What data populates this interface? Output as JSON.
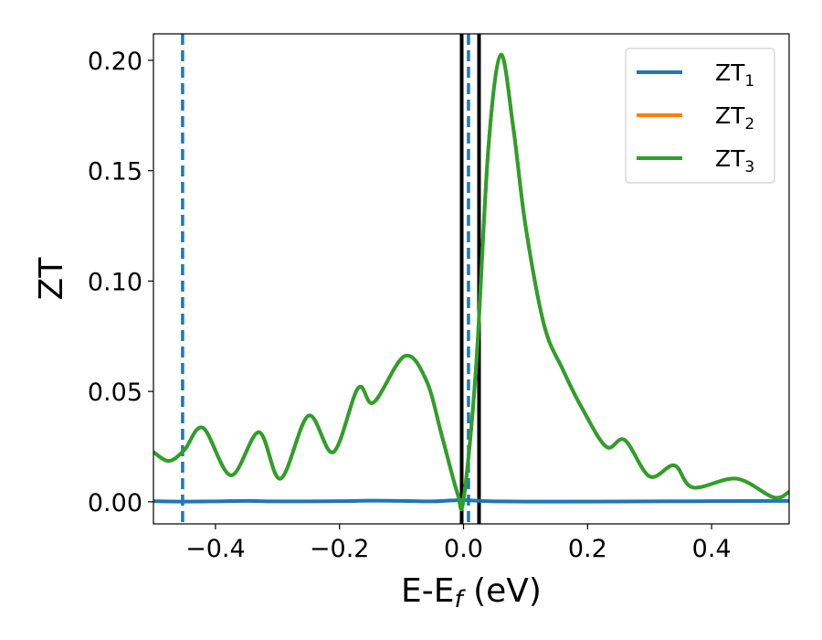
{
  "chart_data": {
    "type": "line",
    "xlabel": {
      "main": "E-E",
      "sub": "f",
      "unit": " (eV)"
    },
    "ylabel": "ZT",
    "xlim": [
      -0.5,
      0.525
    ],
    "ylim": [
      -0.01,
      0.212
    ],
    "grid": false,
    "legend_position": "upper right",
    "x_ticks": [
      {
        "value": -0.4,
        "label": "−0.4"
      },
      {
        "value": -0.2,
        "label": "−0.2"
      },
      {
        "value": 0.0,
        "label": "0.0"
      },
      {
        "value": 0.2,
        "label": "0.2"
      },
      {
        "value": 0.4,
        "label": "0.4"
      }
    ],
    "y_ticks": [
      {
        "value": 0.0,
        "label": "0.00"
      },
      {
        "value": 0.05,
        "label": "0.05"
      },
      {
        "value": 0.1,
        "label": "0.10"
      },
      {
        "value": 0.15,
        "label": "0.15"
      },
      {
        "value": 0.2,
        "label": "0.20"
      }
    ],
    "series": [
      {
        "name": "ZT",
        "sub": "1",
        "color": "#1f77b4",
        "x": [
          -0.5,
          -0.45,
          -0.4,
          -0.35,
          -0.3,
          -0.2,
          -0.15,
          -0.1,
          -0.05,
          -0.02,
          0.0,
          0.02,
          0.05,
          0.1,
          0.2,
          0.3,
          0.4,
          0.525
        ],
        "y": [
          0.0003,
          0.0001,
          0.0002,
          0.0004,
          0.0002,
          0.0003,
          0.0005,
          0.0004,
          0.0002,
          0.0006,
          0.0008,
          0.0005,
          0.0002,
          0.0001,
          0.0001,
          0.0002,
          0.0003,
          0.0004
        ]
      },
      {
        "name": "ZT",
        "sub": "2",
        "color": "#ff7f0e",
        "x": [
          -0.5,
          -0.475,
          -0.45,
          -0.42,
          -0.375,
          -0.33,
          -0.295,
          -0.25,
          -0.21,
          -0.17,
          -0.145,
          -0.095,
          -0.06,
          -0.035,
          -0.01,
          0.0,
          0.02,
          0.04,
          0.06,
          0.08,
          0.1,
          0.13,
          0.16,
          0.19,
          0.23,
          0.26,
          0.3,
          0.34,
          0.37,
          0.44,
          0.5,
          0.525
        ],
        "y": [
          0.0225,
          0.0185,
          0.0235,
          0.0335,
          0.012,
          0.0315,
          0.0105,
          0.039,
          0.0225,
          0.0515,
          0.045,
          0.066,
          0.055,
          0.03,
          0.004,
          0.001,
          0.06,
          0.16,
          0.2025,
          0.17,
          0.125,
          0.08,
          0.06,
          0.043,
          0.025,
          0.028,
          0.0115,
          0.0165,
          0.0065,
          0.0105,
          0.002,
          0.0045
        ]
      },
      {
        "name": "ZT",
        "sub": "3",
        "color": "#2ca02c",
        "x": [
          -0.5,
          -0.475,
          -0.45,
          -0.42,
          -0.375,
          -0.33,
          -0.295,
          -0.25,
          -0.21,
          -0.17,
          -0.145,
          -0.095,
          -0.06,
          -0.035,
          -0.01,
          0.0,
          0.02,
          0.04,
          0.06,
          0.08,
          0.1,
          0.13,
          0.16,
          0.19,
          0.23,
          0.26,
          0.3,
          0.34,
          0.37,
          0.44,
          0.5,
          0.525
        ],
        "y": [
          0.0225,
          0.0185,
          0.0235,
          0.0335,
          0.012,
          0.0315,
          0.0105,
          0.039,
          0.0225,
          0.0515,
          0.045,
          0.066,
          0.055,
          0.03,
          0.004,
          0.001,
          0.06,
          0.16,
          0.2025,
          0.17,
          0.125,
          0.08,
          0.06,
          0.043,
          0.025,
          0.028,
          0.0115,
          0.0165,
          0.0065,
          0.0105,
          0.002,
          0.0045
        ]
      }
    ],
    "vlines": [
      {
        "x": -0.453,
        "color": "#1f77b4",
        "style": "dashed"
      },
      {
        "x": 0.008,
        "color": "#1f77b4",
        "style": "dashed"
      },
      {
        "x": -0.003,
        "color": "#000000",
        "style": "solid"
      },
      {
        "x": 0.025,
        "color": "#000000",
        "style": "solid"
      }
    ]
  }
}
